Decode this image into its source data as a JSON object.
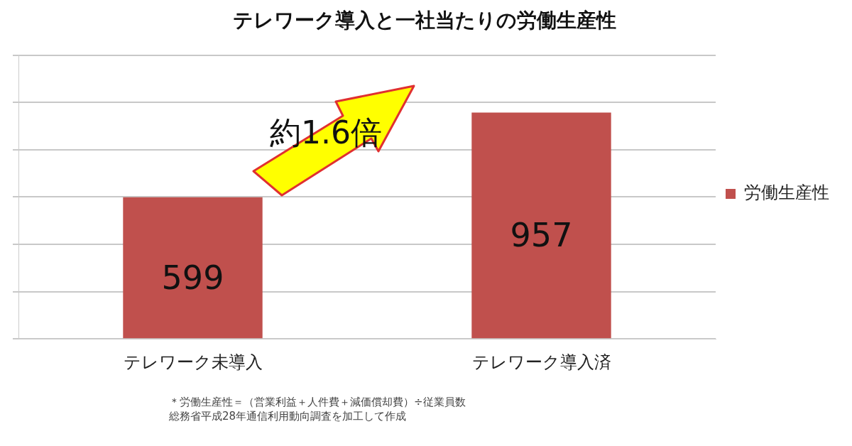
{
  "chart_data": {
    "type": "bar",
    "title": "テレワーク導入と一社当たりの労働生産性",
    "categories": [
      "テレワーク未導入",
      "テレワーク導入済"
    ],
    "series": [
      {
        "name": "労働生産性",
        "color": "#c0504d",
        "values": [
          599,
          957
        ]
      }
    ],
    "ylim": [
      0,
      1200
    ],
    "yticks": [
      {
        "value": 0,
        "label": null
      },
      {
        "value": 200,
        "label": null
      },
      {
        "value": 400,
        "label": null
      },
      {
        "value": 600,
        "label": null
      },
      {
        "value": 800,
        "label": null
      },
      {
        "value": 1000,
        "label": null
      },
      {
        "value": 1200,
        "label": null
      }
    ],
    "tick_labels": "x",
    "grid": "y",
    "legend": "right",
    "data_labels": true,
    "annotations": [
      "約1.6倍",
      "＊労働生産性＝（営業利益＋人件費＋減価償却費）÷従業員数",
      "総務省平成28年通信利用動向調査を加工して作成"
    ]
  }
}
